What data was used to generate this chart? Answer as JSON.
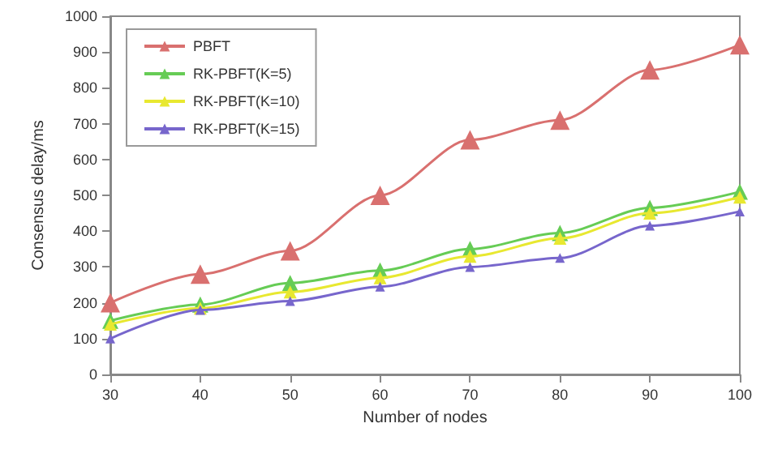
{
  "chart_data": {
    "type": "line",
    "xlabel": "Number of nodes",
    "ylabel": "Consensus delay/ms",
    "x": [
      30,
      40,
      50,
      60,
      70,
      80,
      90,
      100
    ],
    "series": [
      {
        "name": "PBFT",
        "color": "#d9706f",
        "values": [
          200,
          280,
          345,
          500,
          655,
          710,
          850,
          920
        ]
      },
      {
        "name": "RK-PBFT(K=5)",
        "color": "#66cc55",
        "values": [
          150,
          195,
          255,
          290,
          350,
          395,
          465,
          510
        ]
      },
      {
        "name": "RK-PBFT(K=10)",
        "color": "#e8e830",
        "values": [
          140,
          185,
          230,
          270,
          330,
          380,
          450,
          495
        ]
      },
      {
        "name": "RK-PBFT(K=15)",
        "color": "#7766cc",
        "values": [
          100,
          180,
          205,
          245,
          300,
          325,
          415,
          455
        ]
      }
    ],
    "xlim": [
      30,
      100
    ],
    "xticks": [
      30,
      40,
      50,
      60,
      70,
      80,
      90,
      100
    ],
    "ylim": [
      0,
      1000
    ],
    "yticks": [
      0,
      100,
      200,
      300,
      400,
      500,
      600,
      700,
      800,
      900,
      1000
    ],
    "grid": false,
    "legend": "top left",
    "marker": "triangle",
    "line_style": "solid"
  }
}
